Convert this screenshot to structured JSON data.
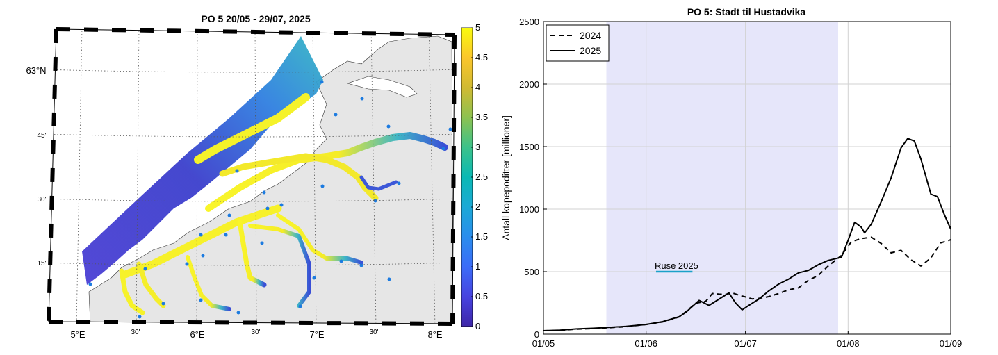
{
  "map_panel": {
    "title": "PO 5  20/05 - 29/07, 2025",
    "lon_ticks": [
      "5°E",
      "30'",
      "6°E",
      "30'",
      "7°E",
      "30'",
      "8°E"
    ],
    "lat_ticks": [
      "63°N",
      "45'",
      "30'",
      "15'"
    ],
    "colorbar": {
      "ticks": [
        "5",
        "4.5",
        "4",
        "3.5",
        "3",
        "2.5",
        "2",
        "1.5",
        "1",
        "0.5",
        "0"
      ],
      "range": [
        0,
        5
      ],
      "colormap": "parula"
    },
    "colors": {
      "land": "#e6e6e6",
      "station": "#1c7be0"
    }
  },
  "chart_data": {
    "type": "line",
    "title": "PO 5: Stadt til Hustadvika",
    "xlabel": "",
    "ylabel": "Antall kopepoditter [millioner]",
    "x_ticks": [
      "01/05",
      "01/06",
      "01/07",
      "01/08",
      "01/09"
    ],
    "y_ticks": [
      "0",
      "500",
      "1000",
      "1500",
      "2000",
      "2500"
    ],
    "ylim": [
      0,
      2500
    ],
    "xlim": [
      "2025-05-01",
      "2025-09-01"
    ],
    "grid": true,
    "legend": {
      "placement": "top-left",
      "entries": [
        "2024",
        "2025"
      ]
    },
    "shaded_period": {
      "start": "2025-05-20",
      "end": "2025-07-29",
      "color": "#e6e6fa"
    },
    "annotation": {
      "text": "Ruse 2025",
      "start": "2025-06-04",
      "end": "2025-06-15",
      "y": 500,
      "color": "#1aa1c8"
    },
    "series": [
      {
        "name": "2024",
        "style": "dashed",
        "points": [
          [
            "2025-05-01",
            28
          ],
          [
            "2025-05-06",
            30
          ],
          [
            "2025-05-11",
            40
          ],
          [
            "2025-05-16",
            45
          ],
          [
            "2025-05-21",
            52
          ],
          [
            "2025-05-26",
            60
          ],
          [
            "2025-06-01",
            78
          ],
          [
            "2025-06-06",
            98
          ],
          [
            "2025-06-11",
            138
          ],
          [
            "2025-06-13",
            180
          ],
          [
            "2025-06-16",
            248
          ],
          [
            "2025-06-19",
            262
          ],
          [
            "2025-06-21",
            325
          ],
          [
            "2025-06-23",
            320
          ],
          [
            "2025-06-25",
            318
          ],
          [
            "2025-06-27",
            330
          ],
          [
            "2025-06-29",
            312
          ],
          [
            "2025-07-01",
            298
          ],
          [
            "2025-07-03",
            282
          ],
          [
            "2025-07-05",
            286
          ],
          [
            "2025-07-08",
            300
          ],
          [
            "2025-07-11",
            325
          ],
          [
            "2025-07-14",
            355
          ],
          [
            "2025-07-17",
            370
          ],
          [
            "2025-07-20",
            430
          ],
          [
            "2025-07-23",
            470
          ],
          [
            "2025-07-26",
            545
          ],
          [
            "2025-07-30",
            630
          ],
          [
            "2025-08-02",
            740
          ],
          [
            "2025-08-05",
            765
          ],
          [
            "2025-08-08",
            775
          ],
          [
            "2025-08-11",
            725
          ],
          [
            "2025-08-14",
            650
          ],
          [
            "2025-08-17",
            670
          ],
          [
            "2025-08-20",
            595
          ],
          [
            "2025-08-23",
            545
          ],
          [
            "2025-08-26",
            610
          ],
          [
            "2025-08-29",
            730
          ],
          [
            "2025-09-01",
            755
          ]
        ]
      },
      {
        "name": "2025",
        "style": "solid",
        "points": [
          [
            "2025-05-01",
            28
          ],
          [
            "2025-05-06",
            32
          ],
          [
            "2025-05-11",
            42
          ],
          [
            "2025-05-16",
            47
          ],
          [
            "2025-05-21",
            55
          ],
          [
            "2025-05-26",
            62
          ],
          [
            "2025-06-01",
            78
          ],
          [
            "2025-06-06",
            100
          ],
          [
            "2025-06-11",
            140
          ],
          [
            "2025-06-13",
            175
          ],
          [
            "2025-06-17",
            270
          ],
          [
            "2025-06-20",
            230
          ],
          [
            "2025-06-23",
            280
          ],
          [
            "2025-06-26",
            330
          ],
          [
            "2025-06-28",
            250
          ],
          [
            "2025-06-30",
            195
          ],
          [
            "2025-07-02",
            230
          ],
          [
            "2025-07-05",
            280
          ],
          [
            "2025-07-08",
            345
          ],
          [
            "2025-07-11",
            400
          ],
          [
            "2025-07-14",
            440
          ],
          [
            "2025-07-17",
            490
          ],
          [
            "2025-07-20",
            510
          ],
          [
            "2025-07-23",
            555
          ],
          [
            "2025-07-26",
            590
          ],
          [
            "2025-07-30",
            615
          ],
          [
            "2025-08-01",
            750
          ],
          [
            "2025-08-03",
            895
          ],
          [
            "2025-08-05",
            855
          ],
          [
            "2025-08-06",
            810
          ],
          [
            "2025-08-08",
            880
          ],
          [
            "2025-08-11",
            1060
          ],
          [
            "2025-08-14",
            1250
          ],
          [
            "2025-08-17",
            1490
          ],
          [
            "2025-08-19",
            1565
          ],
          [
            "2025-08-21",
            1545
          ],
          [
            "2025-08-23",
            1400
          ],
          [
            "2025-08-26",
            1120
          ],
          [
            "2025-08-28",
            1100
          ],
          [
            "2025-08-30",
            960
          ],
          [
            "2025-09-01",
            840
          ]
        ]
      }
    ]
  }
}
